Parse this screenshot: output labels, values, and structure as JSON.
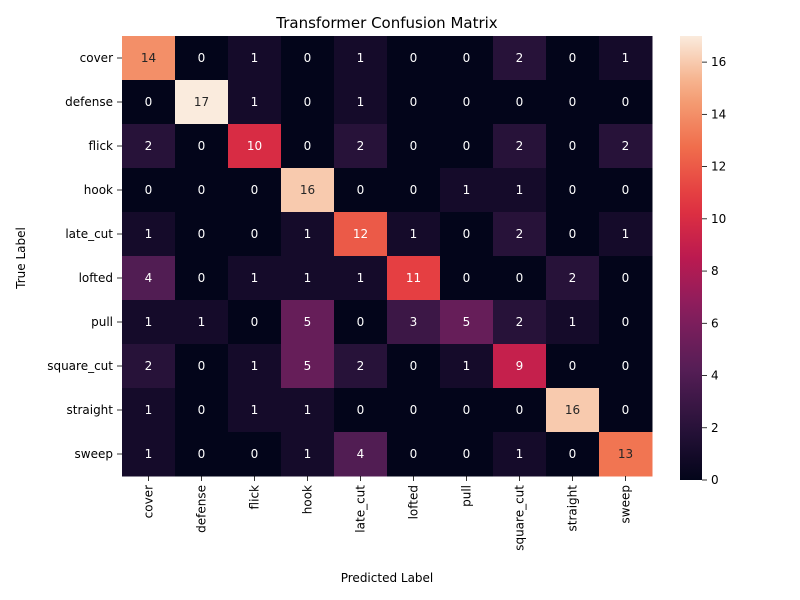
{
  "chart_data": {
    "type": "heatmap",
    "title": "Transformer Confusion Matrix",
    "xlabel": "Predicted Label",
    "ylabel": "True Label",
    "x_categories": [
      "cover",
      "defense",
      "flick",
      "hook",
      "late_cut",
      "lofted",
      "pull",
      "square_cut",
      "straight",
      "sweep"
    ],
    "y_categories": [
      "cover",
      "defense",
      "flick",
      "hook",
      "late_cut",
      "lofted",
      "pull",
      "square_cut",
      "straight",
      "sweep"
    ],
    "values": [
      [
        14,
        0,
        1,
        0,
        1,
        0,
        0,
        2,
        0,
        1
      ],
      [
        0,
        17,
        1,
        0,
        1,
        0,
        0,
        0,
        0,
        0
      ],
      [
        2,
        0,
        10,
        0,
        2,
        0,
        0,
        2,
        0,
        2
      ],
      [
        0,
        0,
        0,
        16,
        0,
        0,
        1,
        1,
        0,
        0
      ],
      [
        1,
        0,
        0,
        1,
        12,
        1,
        0,
        2,
        0,
        1
      ],
      [
        4,
        0,
        1,
        1,
        1,
        11,
        0,
        0,
        2,
        0
      ],
      [
        1,
        1,
        0,
        5,
        0,
        3,
        5,
        2,
        1,
        0
      ],
      [
        2,
        0,
        1,
        5,
        2,
        0,
        1,
        9,
        0,
        0
      ],
      [
        1,
        0,
        1,
        1,
        0,
        0,
        0,
        0,
        16,
        0
      ],
      [
        1,
        0,
        0,
        1,
        4,
        0,
        0,
        1,
        0,
        13
      ]
    ],
    "colorbar": {
      "min": 0,
      "max": 17,
      "ticks": [
        "0",
        "2",
        "4",
        "6",
        "8",
        "10",
        "12",
        "14",
        "16"
      ]
    },
    "colormap": "rocket"
  }
}
